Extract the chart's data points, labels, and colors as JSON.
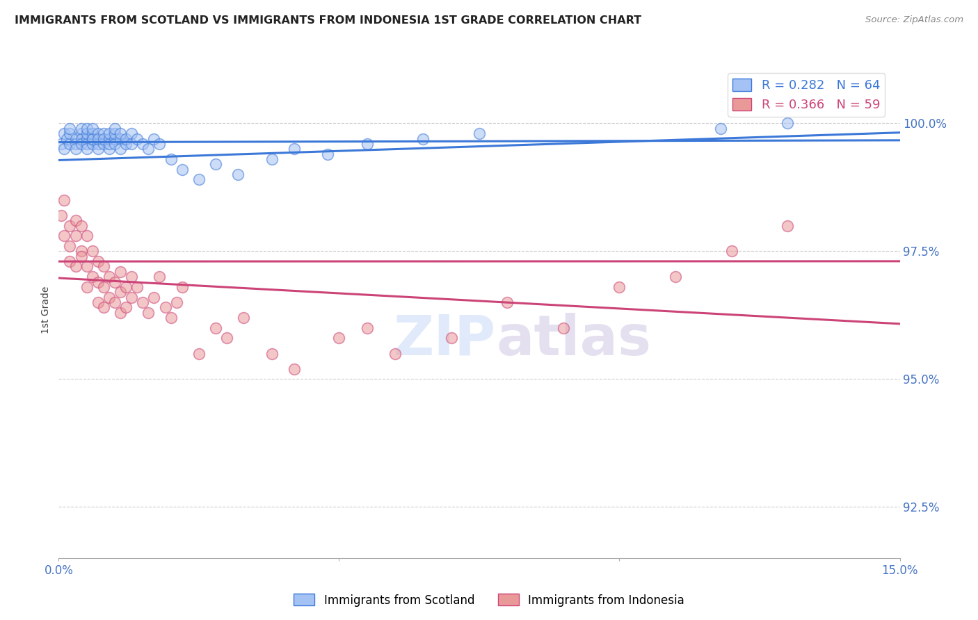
{
  "title": "IMMIGRANTS FROM SCOTLAND VS IMMIGRANTS FROM INDONESIA 1ST GRADE CORRELATION CHART",
  "source": "Source: ZipAtlas.com",
  "ylabel": "1st Grade",
  "x_min": 0.0,
  "x_max": 0.15,
  "y_min": 91.5,
  "y_max": 101.2,
  "y_ticks": [
    92.5,
    95.0,
    97.5,
    100.0
  ],
  "x_ticks": [
    0.0,
    0.05,
    0.1,
    0.15
  ],
  "scotland_R": 0.282,
  "scotland_N": 64,
  "indonesia_R": 0.366,
  "indonesia_N": 59,
  "scotland_color": "#a4c2f4",
  "indonesia_color": "#ea9999",
  "scotland_line_color": "#3c78d8",
  "indonesia_line_color": "#cc4477",
  "scotland_x": [
    0.0005,
    0.001,
    0.001,
    0.0015,
    0.002,
    0.002,
    0.002,
    0.003,
    0.003,
    0.003,
    0.004,
    0.004,
    0.004,
    0.004,
    0.005,
    0.005,
    0.005,
    0.005,
    0.005,
    0.006,
    0.006,
    0.006,
    0.006,
    0.006,
    0.007,
    0.007,
    0.007,
    0.007,
    0.008,
    0.008,
    0.008,
    0.009,
    0.009,
    0.009,
    0.009,
    0.01,
    0.01,
    0.01,
    0.01,
    0.011,
    0.011,
    0.011,
    0.012,
    0.012,
    0.013,
    0.013,
    0.014,
    0.015,
    0.016,
    0.017,
    0.018,
    0.02,
    0.022,
    0.025,
    0.028,
    0.032,
    0.038,
    0.042,
    0.048,
    0.055,
    0.065,
    0.075,
    0.118,
    0.13
  ],
  "scotland_y": [
    99.6,
    99.8,
    99.5,
    99.7,
    99.6,
    99.8,
    99.9,
    99.7,
    99.6,
    99.5,
    99.8,
    99.7,
    99.6,
    99.9,
    99.7,
    99.6,
    99.8,
    99.5,
    99.9,
    99.7,
    99.6,
    99.8,
    99.7,
    99.9,
    99.6,
    99.8,
    99.5,
    99.7,
    99.6,
    99.8,
    99.7,
    99.5,
    99.7,
    99.6,
    99.8,
    99.7,
    99.6,
    99.8,
    99.9,
    99.7,
    99.5,
    99.8,
    99.6,
    99.7,
    99.8,
    99.6,
    99.7,
    99.6,
    99.5,
    99.7,
    99.6,
    99.3,
    99.1,
    98.9,
    99.2,
    99.0,
    99.3,
    99.5,
    99.4,
    99.6,
    99.7,
    99.8,
    99.9,
    100.0
  ],
  "indonesia_x": [
    0.0005,
    0.001,
    0.001,
    0.002,
    0.002,
    0.002,
    0.003,
    0.003,
    0.003,
    0.004,
    0.004,
    0.004,
    0.005,
    0.005,
    0.005,
    0.006,
    0.006,
    0.007,
    0.007,
    0.007,
    0.008,
    0.008,
    0.008,
    0.009,
    0.009,
    0.01,
    0.01,
    0.011,
    0.011,
    0.011,
    0.012,
    0.012,
    0.013,
    0.013,
    0.014,
    0.015,
    0.016,
    0.017,
    0.018,
    0.019,
    0.02,
    0.021,
    0.022,
    0.025,
    0.028,
    0.03,
    0.033,
    0.038,
    0.042,
    0.05,
    0.055,
    0.06,
    0.07,
    0.08,
    0.09,
    0.1,
    0.11,
    0.12,
    0.13
  ],
  "indonesia_y": [
    98.2,
    97.8,
    98.5,
    97.6,
    98.0,
    97.3,
    97.8,
    97.2,
    98.1,
    97.5,
    98.0,
    97.4,
    97.8,
    97.2,
    96.8,
    97.5,
    97.0,
    97.3,
    96.9,
    96.5,
    97.2,
    96.8,
    96.4,
    97.0,
    96.6,
    96.9,
    96.5,
    97.1,
    96.7,
    96.3,
    96.8,
    96.4,
    97.0,
    96.6,
    96.8,
    96.5,
    96.3,
    96.6,
    97.0,
    96.4,
    96.2,
    96.5,
    96.8,
    95.5,
    96.0,
    95.8,
    96.2,
    95.5,
    95.2,
    95.8,
    96.0,
    95.5,
    95.8,
    96.5,
    96.0,
    96.8,
    97.0,
    97.5,
    98.0
  ],
  "watermark_zip": "ZIP",
  "watermark_atlas": "atlas",
  "background_color": "#ffffff",
  "grid_color": "#cccccc"
}
